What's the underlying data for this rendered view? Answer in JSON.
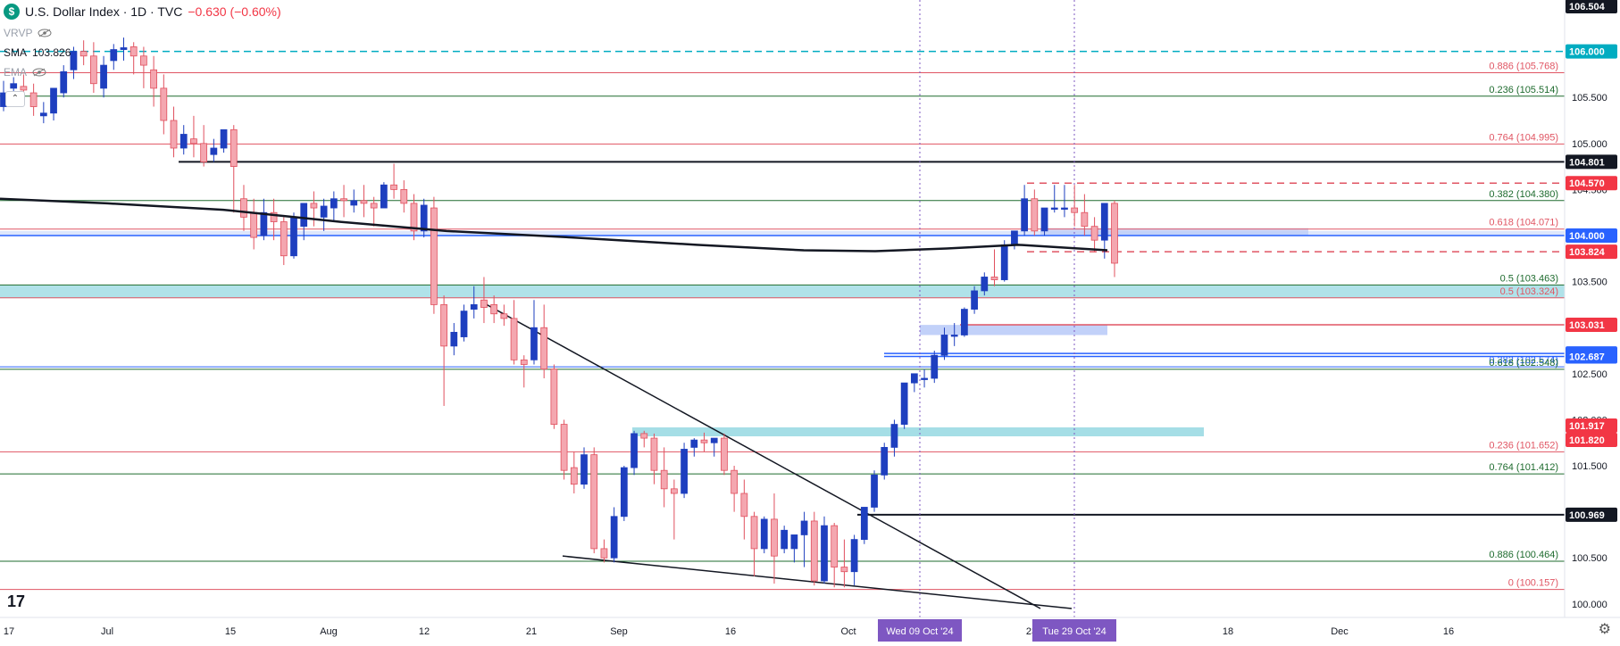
{
  "header": {
    "title": "U.S. Dollar Index · 1D · TVC",
    "change": "−0.630 (−0.60%)",
    "logo_letter": "$"
  },
  "indicators": [
    {
      "name": "VRVP",
      "value": ""
    },
    {
      "name": "SMA",
      "value": "103.826"
    },
    {
      "name": "EMA",
      "value": ""
    }
  ],
  "colors": {
    "up": "#1e3fbf",
    "down": "#f4a7b0",
    "down_border": "#e0505e",
    "sma": "#131722",
    "red_level": "#e05563",
    "green_level": "#1e6b2e",
    "blue_level": "#2962ff",
    "cyan_zone": "#8fd6e0",
    "blue_zone": "#b3c5f7",
    "price_tag_black": "#131722",
    "price_tag_red": "#f23645",
    "price_tag_blue": "#2962ff"
  },
  "chart_data": {
    "type": "candlestick",
    "title": "U.S. Dollar Index · 1D · TVC",
    "ylim": [
      99.95,
      106.5
    ],
    "y_ticks": [
      "106.504",
      "106.000",
      "105.500",
      "105.000",
      "104.500",
      "104.000",
      "103.500",
      "103.000",
      "102.500",
      "102.000",
      "101.500",
      "101.000",
      "100.500",
      "100.000"
    ],
    "x_ticks": [
      "17",
      "Jul",
      "15",
      "Aug",
      "12",
      "21",
      "Sep",
      "16",
      "Oct",
      "23",
      "18",
      "Dec",
      "16"
    ],
    "candles": [
      [
        105.4,
        105.68,
        105.55,
        105.35
      ],
      [
        105.6,
        105.72,
        105.65,
        105.45
      ],
      [
        105.62,
        105.75,
        105.58,
        105.48
      ],
      [
        105.55,
        105.65,
        105.4,
        105.3
      ],
      [
        105.3,
        105.45,
        105.33,
        105.22
      ],
      [
        105.33,
        105.5,
        105.6,
        105.25
      ],
      [
        105.55,
        105.85,
        105.78,
        105.5
      ],
      [
        105.8,
        106.05,
        106.0,
        105.7
      ],
      [
        106.0,
        106.12,
        105.95,
        105.85
      ],
      [
        105.95,
        106.1,
        105.65,
        105.55
      ],
      [
        105.6,
        105.95,
        105.85,
        105.5
      ],
      [
        105.9,
        106.08,
        106.02,
        105.8
      ],
      [
        106.02,
        106.15,
        106.04,
        105.9
      ],
      [
        106.05,
        106.1,
        105.95,
        105.75
      ],
      [
        105.95,
        106.05,
        105.85,
        105.6
      ],
      [
        105.8,
        105.95,
        105.6,
        105.4
      ],
      [
        105.6,
        105.75,
        105.25,
        105.1
      ],
      [
        105.25,
        105.4,
        104.95,
        104.85
      ],
      [
        104.95,
        105.2,
        105.1,
        104.88
      ],
      [
        105.05,
        105.3,
        105.0,
        104.85
      ],
      [
        105.0,
        105.2,
        104.8,
        104.75
      ],
      [
        104.88,
        105.05,
        104.95,
        104.8
      ],
      [
        104.95,
        105.1,
        105.15,
        104.9
      ],
      [
        105.15,
        105.2,
        104.75,
        104.25
      ],
      [
        104.4,
        104.55,
        104.2,
        104.05
      ],
      [
        104.25,
        104.4,
        103.98,
        103.85
      ],
      [
        104.0,
        104.4,
        104.25,
        103.95
      ],
      [
        104.25,
        104.4,
        104.15,
        103.95
      ],
      [
        104.15,
        104.2,
        103.78,
        103.68
      ],
      [
        103.78,
        104.25,
        104.2,
        103.75
      ],
      [
        104.1,
        104.35,
        104.35,
        103.95
      ],
      [
        104.35,
        104.48,
        104.3,
        104.1
      ],
      [
        104.2,
        104.4,
        104.32,
        104.05
      ],
      [
        104.3,
        104.48,
        104.4,
        104.15
      ],
      [
        104.4,
        104.55,
        104.38,
        104.2
      ],
      [
        104.33,
        104.5,
        104.38,
        104.25
      ],
      [
        104.38,
        104.55,
        104.35,
        104.2
      ],
      [
        104.35,
        104.42,
        104.3,
        104.1
      ],
      [
        104.3,
        104.58,
        104.55,
        104.3
      ],
      [
        104.55,
        104.78,
        104.5,
        104.4
      ],
      [
        104.5,
        104.6,
        104.35,
        104.25
      ],
      [
        104.35,
        104.45,
        104.05,
        103.95
      ],
      [
        104.05,
        104.4,
        104.33,
        103.98
      ],
      [
        104.3,
        104.42,
        103.25,
        103.15
      ],
      [
        103.25,
        103.35,
        102.8,
        102.15
      ],
      [
        102.8,
        103.05,
        102.95,
        102.7
      ],
      [
        102.9,
        103.25,
        103.18,
        102.85
      ],
      [
        103.2,
        103.45,
        103.25,
        103.1
      ],
      [
        103.3,
        103.55,
        103.22,
        103.05
      ],
      [
        103.25,
        103.35,
        103.15,
        103.05
      ],
      [
        103.15,
        103.25,
        103.1,
        103.02
      ],
      [
        103.1,
        103.3,
        102.65,
        102.6
      ],
      [
        102.65,
        102.7,
        102.6,
        102.35
      ],
      [
        102.65,
        103.3,
        103.0,
        102.6
      ],
      [
        103.0,
        103.25,
        102.55,
        102.45
      ],
      [
        102.55,
        102.6,
        101.95,
        101.9
      ],
      [
        101.95,
        102.0,
        101.45,
        101.35
      ],
      [
        101.48,
        101.65,
        101.3,
        101.2
      ],
      [
        101.3,
        101.7,
        101.62,
        101.25
      ],
      [
        101.62,
        101.7,
        100.6,
        100.55
      ],
      [
        100.6,
        100.7,
        100.5,
        100.45
      ],
      [
        100.5,
        101.05,
        100.95,
        100.45
      ],
      [
        100.95,
        101.5,
        101.48,
        100.9
      ],
      [
        101.48,
        101.88,
        101.85,
        101.4
      ],
      [
        101.85,
        101.88,
        101.8,
        101.7
      ],
      [
        101.8,
        101.85,
        101.45,
        101.3
      ],
      [
        101.45,
        101.7,
        101.25,
        101.05
      ],
      [
        101.25,
        101.35,
        101.2,
        100.7
      ],
      [
        101.2,
        101.75,
        101.68,
        101.15
      ],
      [
        101.7,
        101.8,
        101.78,
        101.6
      ],
      [
        101.78,
        101.86,
        101.75,
        101.65
      ],
      [
        101.75,
        101.8,
        101.8,
        101.6
      ],
      [
        101.8,
        101.85,
        101.45,
        101.4
      ],
      [
        101.45,
        101.5,
        101.2,
        101.0
      ],
      [
        101.2,
        101.35,
        100.95,
        100.7
      ],
      [
        100.95,
        101.0,
        100.6,
        100.3
      ],
      [
        100.6,
        100.95,
        100.92,
        100.55
      ],
      [
        100.92,
        101.2,
        100.52,
        100.22
      ],
      [
        100.6,
        100.85,
        100.8,
        100.55
      ],
      [
        100.6,
        100.75,
        100.75,
        100.45
      ],
      [
        100.75,
        101.0,
        100.9,
        100.4
      ],
      [
        100.9,
        101.0,
        100.25,
        100.2
      ],
      [
        100.25,
        100.95,
        100.85,
        100.22
      ],
      [
        100.85,
        100.88,
        100.4,
        100.18
      ],
      [
        100.4,
        100.7,
        100.35,
        100.18
      ],
      [
        100.35,
        100.75,
        100.7,
        100.2
      ],
      [
        100.7,
        101.05,
        101.05,
        100.65
      ],
      [
        101.05,
        101.45,
        101.4,
        101.0
      ],
      [
        101.4,
        101.75,
        101.7,
        101.35
      ],
      [
        101.7,
        102.0,
        101.95,
        101.6
      ],
      [
        101.95,
        102.4,
        102.4,
        101.9
      ],
      [
        102.4,
        102.45,
        102.5,
        102.3
      ],
      [
        102.45,
        102.55,
        102.45,
        102.35
      ],
      [
        102.45,
        102.75,
        102.7,
        102.4
      ],
      [
        102.7,
        103.0,
        102.92,
        102.65
      ],
      [
        102.92,
        103.05,
        102.92,
        102.8
      ],
      [
        102.92,
        103.22,
        103.2,
        102.9
      ],
      [
        103.2,
        103.45,
        103.4,
        103.15
      ],
      [
        103.4,
        103.6,
        103.55,
        103.35
      ],
      [
        103.55,
        103.85,
        103.52,
        103.45
      ],
      [
        103.52,
        103.95,
        103.9,
        103.5
      ],
      [
        103.9,
        104.05,
        104.05,
        103.85
      ],
      [
        104.05,
        104.55,
        104.4,
        104.0
      ],
      [
        104.4,
        104.5,
        104.05,
        104.0
      ],
      [
        104.05,
        104.3,
        104.3,
        104.0
      ],
      [
        104.3,
        104.55,
        104.3,
        104.25
      ],
      [
        104.3,
        104.55,
        104.3,
        104.2
      ],
      [
        104.3,
        104.55,
        104.25,
        104.1
      ],
      [
        104.25,
        104.45,
        104.1,
        104.0
      ],
      [
        104.1,
        104.2,
        103.95,
        103.82
      ],
      [
        103.95,
        104.35,
        104.35,
        103.75
      ],
      [
        104.35,
        104.38,
        103.7,
        103.55
      ]
    ],
    "sma_label": "SMA 103.826",
    "levels": [
      {
        "label": "0.886 (105.768)",
        "value": 105.768,
        "color": "red"
      },
      {
        "label": "0.236 (105.514)",
        "value": 105.514,
        "color": "green"
      },
      {
        "label": "0.764 (104.995)",
        "value": 104.995,
        "color": "red"
      },
      {
        "label": "0.382 (104.380)",
        "value": 104.38,
        "color": "green"
      },
      {
        "label": "0.618 (104.071)",
        "value": 104.071,
        "color": "red"
      },
      {
        "label": "0.5 (103.463)",
        "value": 103.463,
        "color": "green"
      },
      {
        "label": "0.5 (103.324)",
        "value": 103.324,
        "color": "red"
      },
      {
        "label": "0.382 (102.574)",
        "value": 102.574,
        "color": "blue"
      },
      {
        "label": "0.618 (102.548)",
        "value": 102.548,
        "color": "green"
      },
      {
        "label": "0.236 (101.652)",
        "value": 101.652,
        "color": "red"
      },
      {
        "label": "0.764 (101.412)",
        "value": 101.412,
        "color": "green"
      },
      {
        "label": "0.886 (100.464)",
        "value": 100.464,
        "color": "green"
      },
      {
        "label": "0 (100.157)",
        "value": 100.157,
        "color": "red"
      }
    ],
    "horizontal_lines": [
      {
        "value": 106.0,
        "style": "cyan-dashed"
      },
      {
        "value": 104.801,
        "style": "black"
      },
      {
        "value": 104.57,
        "style": "red-dashed"
      },
      {
        "value": 104.0,
        "style": "blue"
      },
      {
        "value": 103.824,
        "style": "red-dashed"
      },
      {
        "value": 103.031,
        "style": "red"
      },
      {
        "value": 102.72,
        "style": "blue"
      },
      {
        "value": 102.687,
        "style": "blue"
      },
      {
        "value": 100.969,
        "style": "black"
      }
    ],
    "price_tags": [
      {
        "text": "106.504",
        "value": 106.504,
        "kind": "black"
      },
      {
        "text": "106.000",
        "value": 106.0,
        "kind": "cyan"
      },
      {
        "text": "104.801",
        "value": 104.801,
        "kind": "black"
      },
      {
        "text": "104.570",
        "value": 104.57,
        "kind": "red"
      },
      {
        "text": "104.000",
        "value": 104.0,
        "kind": "blue"
      },
      {
        "text": "103.824",
        "value": 103.824,
        "kind": "red"
      },
      {
        "text": "103.031",
        "value": 103.031,
        "kind": "red"
      },
      {
        "text": "102.720",
        "value": 102.72,
        "kind": "blue"
      },
      {
        "text": "102.687",
        "value": 102.687,
        "kind": "blue"
      },
      {
        "text": "101.917",
        "value": 101.917,
        "kind": "red"
      },
      {
        "text": "101.820",
        "value": 101.82,
        "kind": "red"
      },
      {
        "text": "100.969",
        "value": 100.969,
        "kind": "black"
      }
    ],
    "markers": [
      {
        "label": "Wed 09 Oct '24"
      },
      {
        "label": "Tue 29 Oct '24"
      }
    ]
  }
}
